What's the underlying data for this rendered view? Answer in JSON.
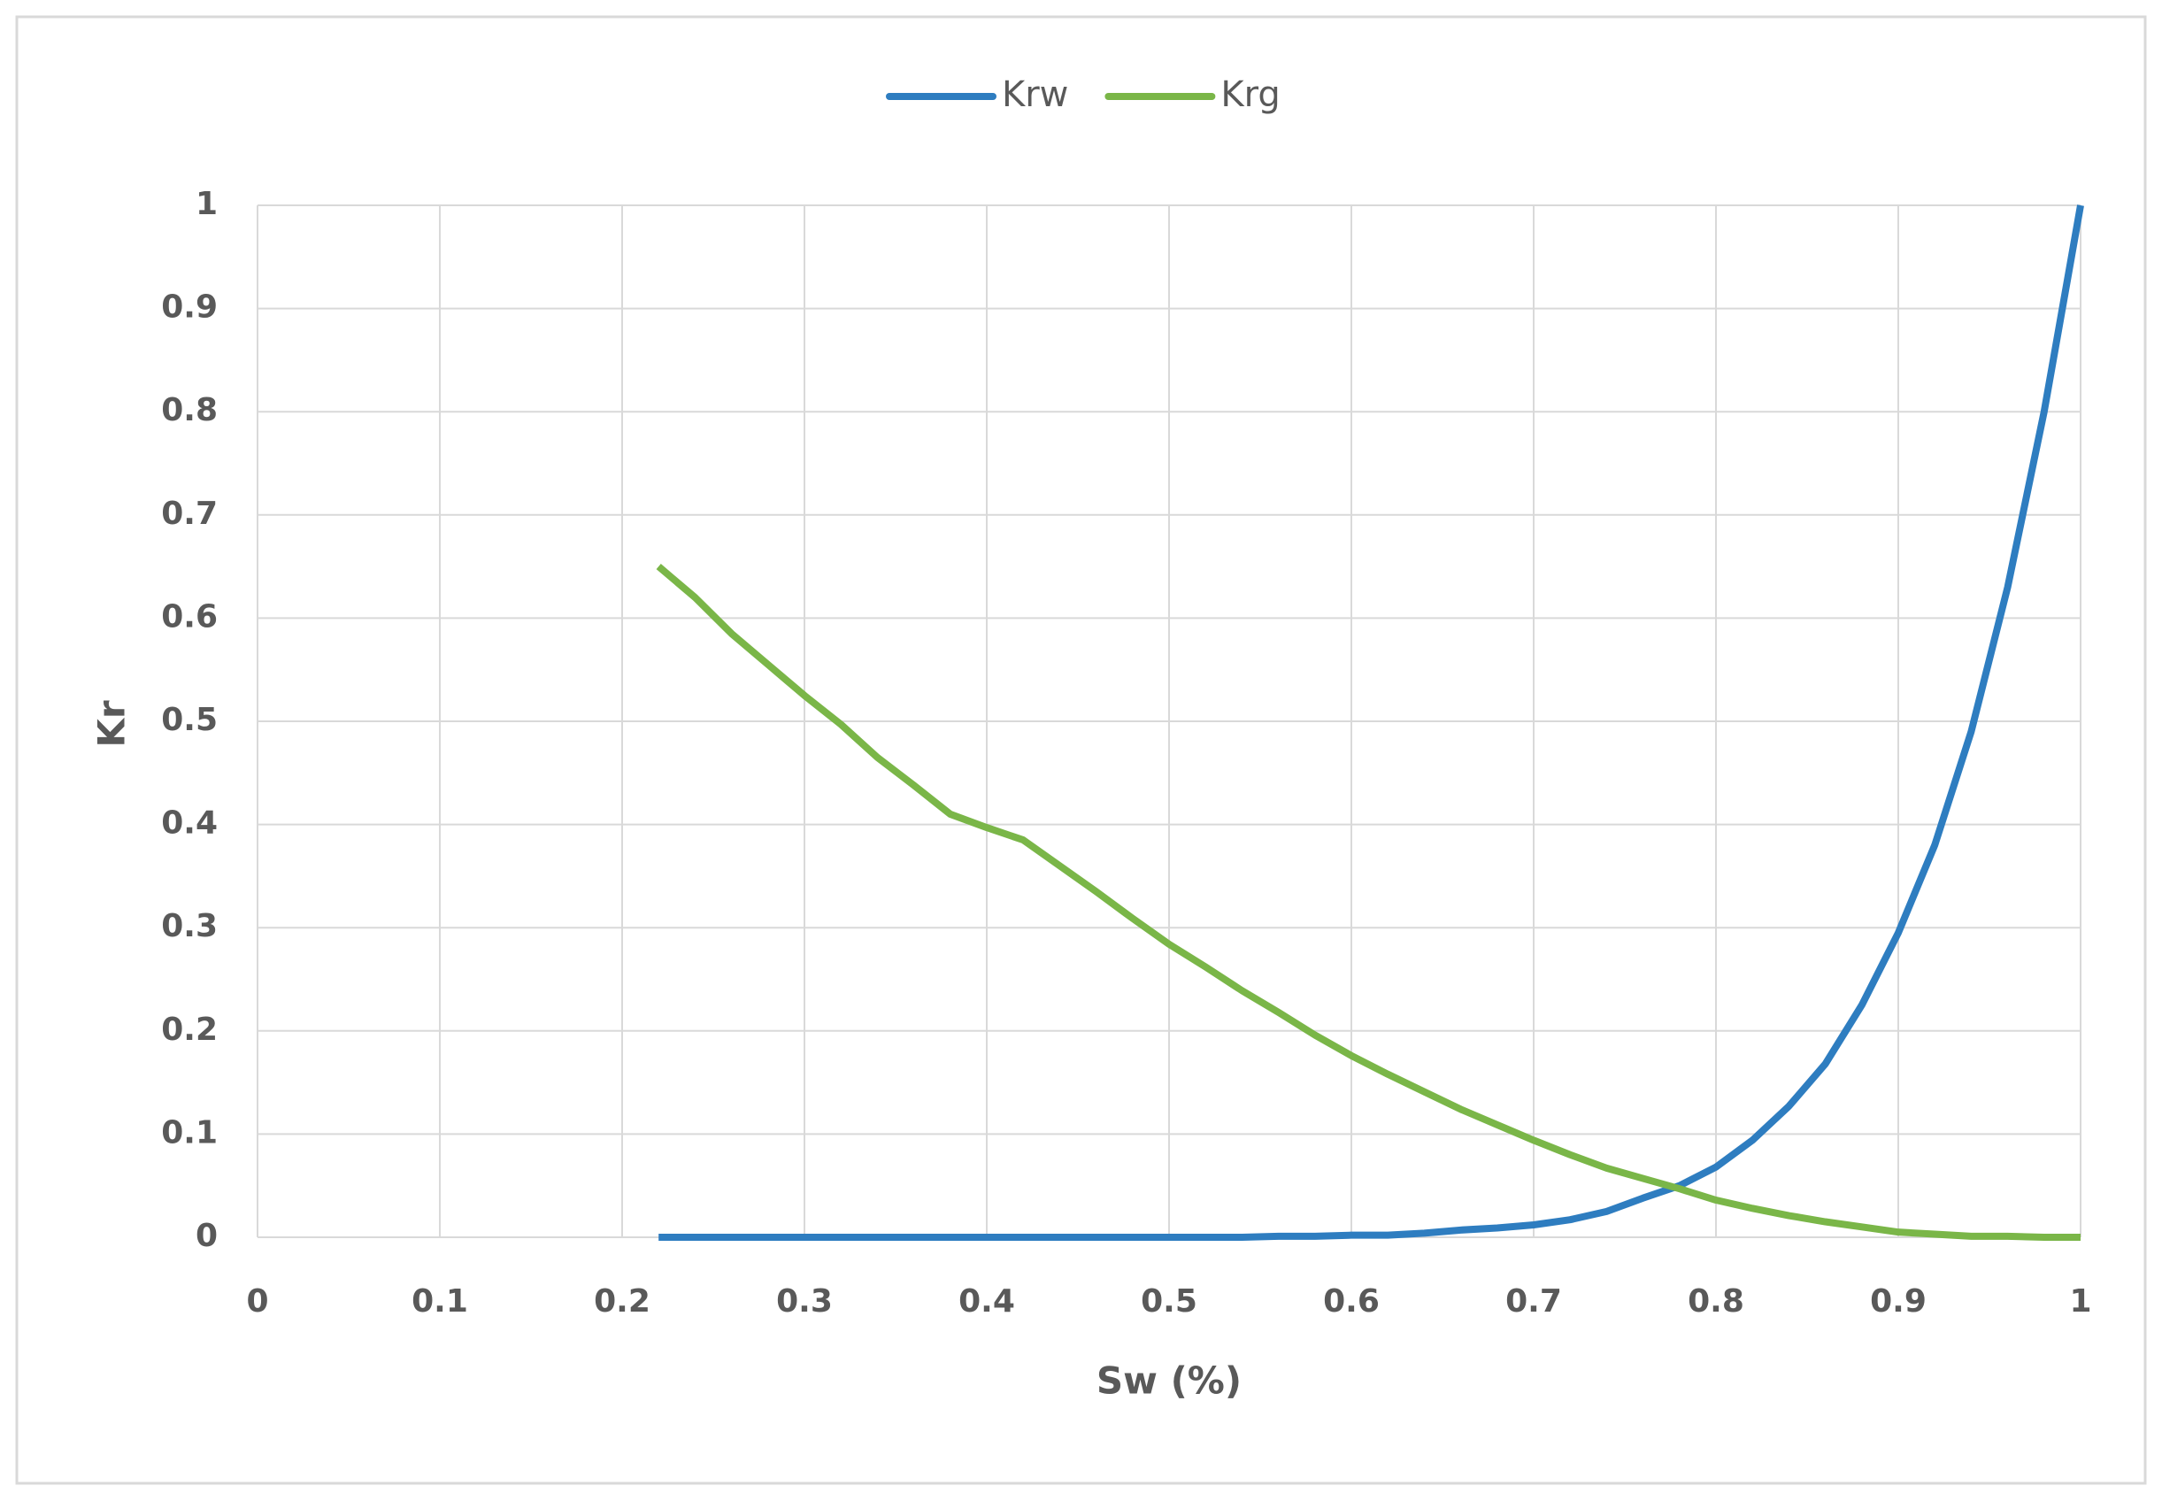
{
  "chart_data": {
    "type": "line",
    "x_label": "Sw (%)",
    "y_label": "Kr",
    "x": [
      0.22,
      0.24,
      0.26,
      0.28,
      0.3,
      0.32,
      0.34,
      0.36,
      0.38,
      0.4,
      0.42,
      0.44,
      0.46,
      0.48,
      0.5,
      0.52,
      0.54,
      0.56,
      0.58,
      0.6,
      0.62,
      0.64,
      0.66,
      0.68,
      0.7,
      0.72,
      0.74,
      0.76,
      0.78,
      0.8,
      0.82,
      0.84,
      0.86,
      0.88,
      0.9,
      0.92,
      0.94,
      0.96,
      0.98,
      1.0
    ],
    "series": [
      {
        "name": "Krw",
        "color": "#2e7dc0",
        "values": [
          0,
          0,
          0,
          0,
          0,
          0,
          0,
          0,
          0,
          0,
          0,
          0,
          0,
          0,
          0,
          0,
          0,
          0.001,
          0.001,
          0.002,
          0.002,
          0.004,
          0.007,
          0.009,
          0.012,
          0.017,
          0.025,
          0.038,
          0.05,
          0.068,
          0.094,
          0.127,
          0.168,
          0.225,
          0.295,
          0.38,
          0.49,
          0.63,
          0.8,
          1
        ]
      },
      {
        "name": "Krg",
        "color": "#7ab648",
        "values": [
          0.65,
          0.62,
          0.585,
          0.555,
          0.525,
          0.497,
          0.465,
          0.438,
          0.41,
          0.397,
          0.385,
          0.36,
          0.335,
          0.309,
          0.284,
          0.262,
          0.239,
          0.218,
          0.196,
          0.176,
          0.158,
          0.141,
          0.124,
          0.109,
          0.094,
          0.08,
          0.067,
          0.057,
          0.047,
          0.036,
          0.028,
          0.021,
          0.015,
          0.01,
          0.005,
          0.003,
          0.001,
          0.001,
          0,
          0
        ]
      }
    ],
    "xlim": [
      0,
      1
    ],
    "xticks": [
      0,
      0.1,
      0.2,
      0.3,
      0.4,
      0.5,
      0.6,
      0.7,
      0.8,
      0.9,
      1
    ],
    "ylim": [
      0,
      1
    ],
    "yticks": [
      0,
      0.1,
      0.2,
      0.3,
      0.4,
      0.5,
      0.6,
      0.7,
      0.8,
      0.9,
      1
    ],
    "grid": true,
    "legend": "top"
  }
}
